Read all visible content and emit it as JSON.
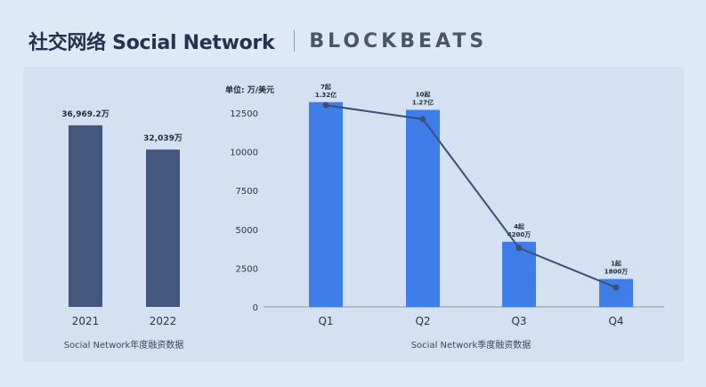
{
  "header": {
    "title": "社交网络 Social Network",
    "brand": "BLOCKBEATS"
  },
  "colors": {
    "dark_bar": "#44587e",
    "blue_bar": "#3f7ee9",
    "line": "#3c4f7a",
    "axis": "#8b97a8"
  },
  "chart_data": [
    {
      "type": "bar",
      "categories": [
        "2021",
        "2022"
      ],
      "values": [
        36969.2,
        32039
      ],
      "data_labels": [
        "36,969.2万",
        "32,039万"
      ],
      "xlabel": "Social Network年度融资数据",
      "ylim": [
        0,
        46000
      ]
    },
    {
      "type": "bar",
      "unit_label": "单位: 万/美元",
      "categories": [
        "Q1",
        "Q2",
        "Q3",
        "Q4"
      ],
      "values": [
        13200,
        12700,
        4200,
        1800
      ],
      "line_values": [
        13000,
        12100,
        3800,
        1250
      ],
      "label_counts": [
        "7起",
        "10起",
        "4起",
        "1起"
      ],
      "label_amounts": [
        "1.32亿",
        "1.27亿",
        "4200万",
        "1800万"
      ],
      "y_ticks": [
        "0",
        "2500",
        "5000",
        "7500",
        "10000",
        "12500"
      ],
      "ylim": [
        0,
        15000
      ],
      "xlabel": "Social Network季度融资数据"
    }
  ]
}
